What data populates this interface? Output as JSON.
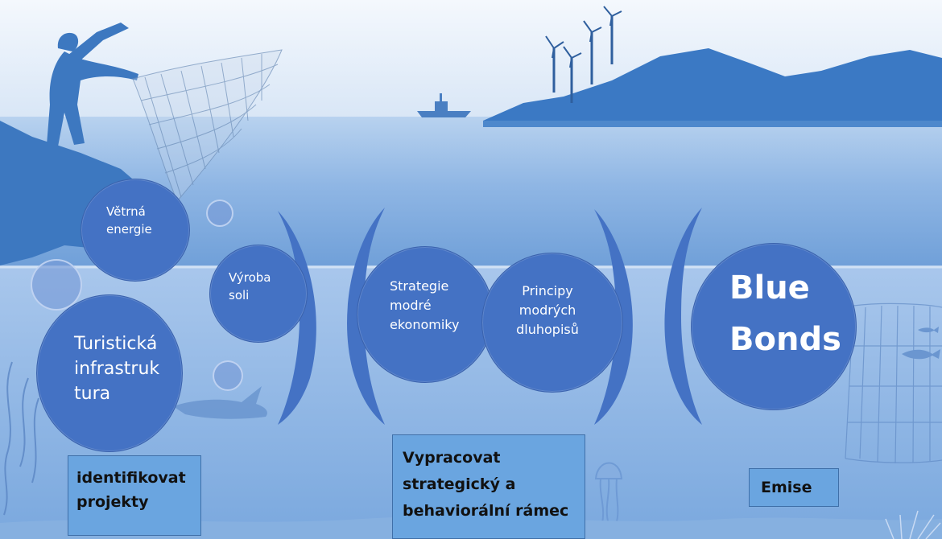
{
  "nodes": {
    "vetrna_energie": "Větrná\nenergie",
    "vyroba_soli": "Výroba\nsoli",
    "turisticka_infrastruktura": "Turistická\ninfrastruk\ntura",
    "strategie": "Strategie\nmodré\nekonomiky",
    "principy": "Principy\nmodrých\ndluhopisů",
    "blue_bonds": "Blue\nBonds"
  },
  "notes": {
    "identifikovat": "identifikovat\nprojekty",
    "vypracovat": "Vypracovat\nstrategický a\nbehaviorální rámec",
    "emise": "Emise"
  },
  "colors": {
    "node_fill": "#4472c4",
    "note_fill": "#6aa5e0",
    "arc_color": "#4472c4",
    "sky": "#e8f0f9",
    "sea": "#9cc0e8"
  }
}
